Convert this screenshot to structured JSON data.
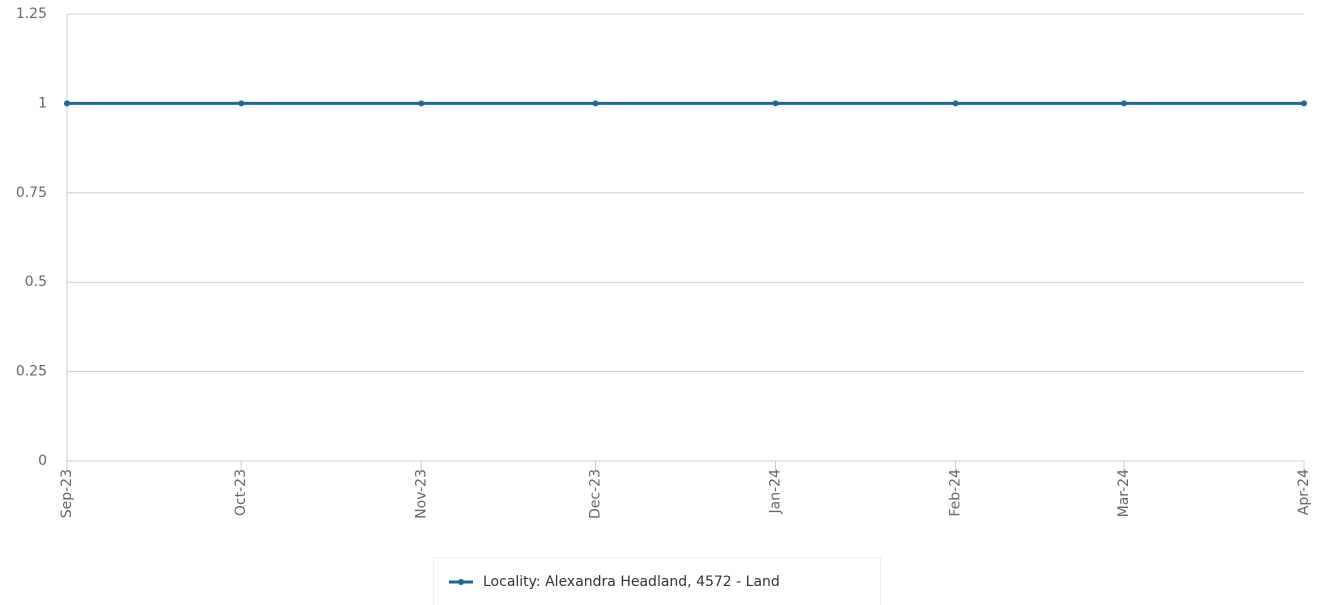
{
  "chart_data": {
    "type": "line",
    "x": [
      "Sep-23",
      "Oct-23",
      "Nov-23",
      "Dec-23",
      "Jan-24",
      "Feb-24",
      "Mar-24",
      "Apr-24"
    ],
    "xlim": [
      "Sep-23",
      "Apr-24"
    ],
    "series": [
      {
        "name": "Locality: Alexandra Headland, 4572 - Land",
        "color": "#176a94",
        "values": [
          1,
          1,
          1,
          1,
          1,
          1,
          1,
          1
        ]
      }
    ],
    "ylim": [
      0,
      1.25
    ],
    "yticks": [
      0,
      0.25,
      0.5,
      0.75,
      1,
      1.25
    ],
    "grid": true
  }
}
